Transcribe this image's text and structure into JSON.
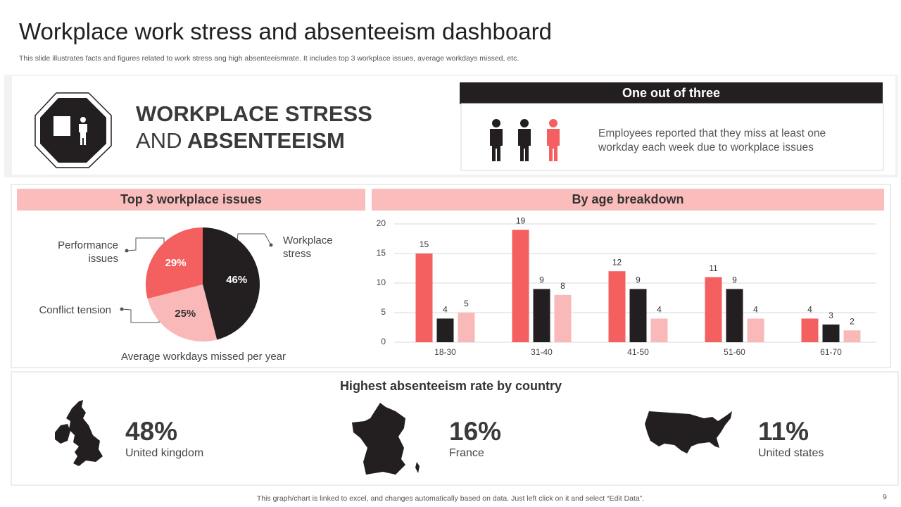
{
  "header": {
    "title": "Workplace work stress and absenteeism dashboard",
    "subtitle": "This slide illustrates facts and figures related to work stress ang high absenteeismrate. It includes top 3 workplace issues, average workdays missed, etc."
  },
  "banner": {
    "line1": "WORKPLACE STRESS",
    "line2_prefix": "AND",
    "line2_bold": "ABSENTEEISM"
  },
  "stat": {
    "heading": "One out of three",
    "text": "Employees reported that they miss at least one workday each week due to workplace issues"
  },
  "chart_data": [
    {
      "type": "pie",
      "title": "Top 3 workplace issues",
      "caption": "Average workdays missed per year",
      "categories": [
        "Workplace stress",
        "Conflict tension",
        "Performance issues"
      ],
      "values": [
        46,
        25,
        29
      ],
      "value_labels": [
        "46%",
        "25%",
        "29%"
      ],
      "colors": [
        "#231f20",
        "#f9b9b9",
        "#f45f5f"
      ]
    },
    {
      "type": "bar",
      "title": "By age breakdown",
      "categories": [
        "18-30",
        "31-40",
        "41-50",
        "51-60",
        "61-70"
      ],
      "series": [
        {
          "color": "#f45f5f",
          "values": [
            15,
            19,
            12,
            11,
            4
          ]
        },
        {
          "color": "#231f20",
          "values": [
            4,
            9,
            9,
            9,
            3
          ]
        },
        {
          "color": "#f9b9b9",
          "values": [
            5,
            8,
            4,
            4,
            2
          ]
        }
      ],
      "ylim": [
        0,
        20
      ],
      "yticks": [
        0,
        5,
        10,
        15,
        20
      ],
      "grid": true
    }
  ],
  "countries": {
    "title": "Highest absenteeism rate by country",
    "items": [
      {
        "rate": "48%",
        "name": "United kingdom"
      },
      {
        "rate": "16%",
        "name": "France"
      },
      {
        "rate": "11%",
        "name": "United states"
      }
    ]
  },
  "footer": {
    "note": "This graph/chart is linked to excel,  and changes automatically based on data. Just left click on it and select “Edit Data”.",
    "page": "9"
  }
}
